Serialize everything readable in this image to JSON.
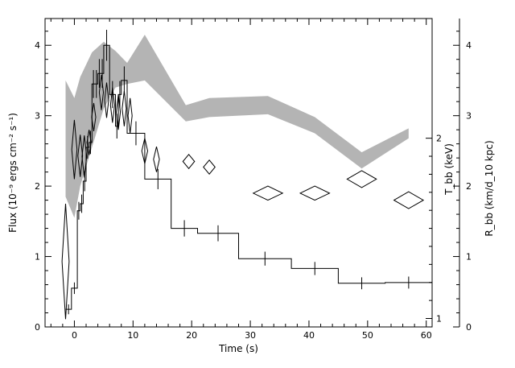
{
  "chart_data": {
    "type": "line",
    "xlabel": "Time (s)",
    "xlim": [
      -5,
      61
    ],
    "x_ticks": [
      0,
      10,
      20,
      30,
      40,
      50,
      60
    ],
    "left_axis": {
      "label": "Flux (10⁻⁹ ergs cm⁻² s⁻¹)",
      "ylim": [
        0,
        4.38
      ],
      "ticks": [
        0,
        1,
        2,
        3,
        4
      ]
    },
    "temperature_axis": {
      "label": "T_bb (keV)",
      "ticks": [
        1,
        2
      ],
      "tick_flux_positions": [
        0.12,
        2.68
      ]
    },
    "radius_axis": {
      "label": "R_bb (km/d_10 kpc)",
      "ylim": [
        0,
        4.38
      ],
      "ticks": [
        0,
        1,
        2,
        3,
        4
      ]
    },
    "series": [
      {
        "kind": "flux_histogram",
        "bins": [
          [
            -1.5,
            -0.5,
            0.25
          ],
          [
            -0.5,
            0.5,
            0.55
          ],
          [
            0.5,
            1.0,
            1.65
          ],
          [
            1.0,
            1.5,
            1.75
          ],
          [
            1.5,
            2.0,
            2.07
          ],
          [
            2.0,
            2.5,
            2.55
          ],
          [
            2.5,
            3.0,
            2.62
          ],
          [
            3.0,
            3.5,
            3.45
          ],
          [
            3.5,
            4.0,
            3.45
          ],
          [
            4.0,
            4.5,
            3.6
          ],
          [
            4.5,
            5.0,
            3.6
          ],
          [
            5.0,
            6.0,
            4.0
          ],
          [
            6.0,
            7.0,
            3.3
          ],
          [
            7.0,
            7.5,
            2.85
          ],
          [
            7.5,
            8.0,
            3.3
          ],
          [
            8.0,
            9.0,
            3.5
          ],
          [
            9.0,
            12.0,
            2.75
          ],
          [
            12.0,
            16.5,
            2.1
          ],
          [
            16.5,
            21.0,
            1.4
          ],
          [
            21.0,
            28.0,
            1.33
          ],
          [
            28.0,
            37.0,
            0.97
          ],
          [
            37.0,
            45.0,
            0.83
          ],
          [
            45.0,
            53.0,
            0.62
          ],
          [
            53.0,
            61.0,
            0.63
          ]
        ]
      },
      {
        "kind": "temperature_diamonds",
        "points": [
          [
            -1.5,
            0.93,
            0.6,
            0.82
          ],
          [
            0.0,
            2.52,
            0.45,
            0.42
          ],
          [
            1.0,
            2.43,
            0.4,
            0.3
          ],
          [
            1.7,
            2.42,
            0.4,
            0.3
          ],
          [
            2.5,
            2.62,
            0.35,
            0.18
          ],
          [
            3.3,
            2.98,
            0.35,
            0.2
          ],
          [
            4.6,
            3.33,
            0.35,
            0.25
          ],
          [
            5.5,
            3.22,
            0.35,
            0.25
          ],
          [
            6.5,
            3.15,
            0.35,
            0.25
          ],
          [
            7.5,
            3.05,
            0.35,
            0.25
          ],
          [
            8.5,
            3.1,
            0.35,
            0.25
          ],
          [
            9.5,
            3.0,
            0.35,
            0.25
          ],
          [
            12.0,
            2.5,
            0.5,
            0.18
          ],
          [
            14.0,
            2.38,
            0.5,
            0.18
          ],
          [
            19.5,
            2.35,
            1.0,
            0.1
          ],
          [
            23.0,
            2.27,
            1.0,
            0.1
          ],
          [
            33.0,
            1.9,
            2.5,
            0.1
          ],
          [
            41.0,
            1.9,
            2.5,
            0.1
          ],
          [
            49.0,
            2.1,
            2.5,
            0.12
          ],
          [
            57.0,
            1.8,
            2.5,
            0.12
          ]
        ]
      },
      {
        "kind": "radius_band",
        "upper": [
          [
            -1.5,
            3.5
          ],
          [
            0.0,
            3.25
          ],
          [
            1.0,
            3.55
          ],
          [
            3.0,
            3.9
          ],
          [
            5.0,
            4.05
          ],
          [
            7.0,
            3.92
          ],
          [
            9.0,
            3.75
          ],
          [
            12.0,
            4.15
          ],
          [
            19.0,
            3.15
          ],
          [
            23.0,
            3.25
          ],
          [
            33.0,
            3.28
          ],
          [
            41.0,
            2.98
          ],
          [
            49.0,
            2.48
          ],
          [
            57.0,
            2.82
          ]
        ],
        "lower": [
          [
            57.0,
            2.68
          ],
          [
            49.0,
            2.25
          ],
          [
            41.0,
            2.75
          ],
          [
            33.0,
            3.02
          ],
          [
            23.0,
            2.98
          ],
          [
            19.0,
            2.92
          ],
          [
            12.0,
            3.5
          ],
          [
            9.0,
            3.45
          ],
          [
            7.0,
            3.4
          ],
          [
            5.0,
            3.1
          ],
          [
            3.0,
            2.55
          ],
          [
            1.0,
            2.0
          ],
          [
            0.0,
            1.55
          ],
          [
            -1.5,
            1.85
          ]
        ]
      }
    ]
  }
}
